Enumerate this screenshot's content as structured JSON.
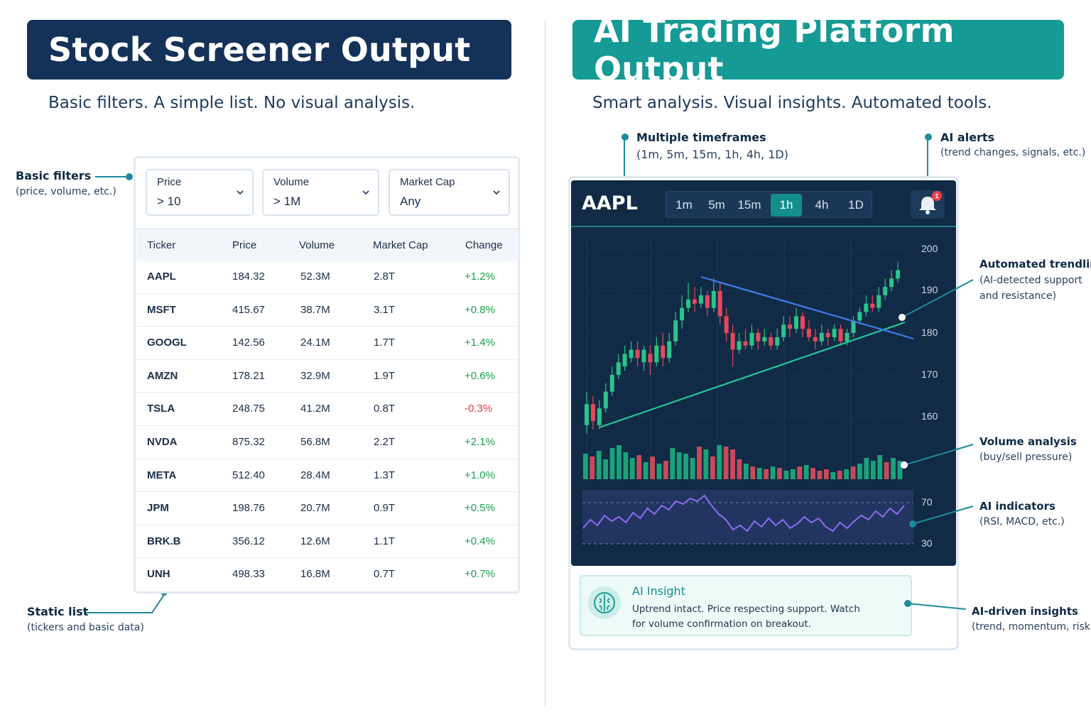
{
  "left": {
    "title": "Stock Screener Output",
    "subtitle": "Basic filters. A simple list. No visual analysis.",
    "annotations": {
      "filters_title": "Basic filters",
      "filters_sub": "(price, volume, etc.)",
      "list_title": "Static list",
      "list_sub": "(tickers and basic data)"
    },
    "filters": [
      {
        "label": "Price",
        "value": "> 10"
      },
      {
        "label": "Volume",
        "value": "> 1M"
      },
      {
        "label": "Market Cap",
        "value": "Any"
      }
    ],
    "columns": [
      "Ticker",
      "Price",
      "Volume",
      "Market Cap",
      "Change"
    ],
    "rows": [
      {
        "ticker": "AAPL",
        "price": "184.32",
        "volume": "52.3M",
        "cap": "2.8T",
        "change": "+1.2%",
        "dir": "pos"
      },
      {
        "ticker": "MSFT",
        "price": "415.67",
        "volume": "38.7M",
        "cap": "3.1T",
        "change": "+0.8%",
        "dir": "pos"
      },
      {
        "ticker": "GOOGL",
        "price": "142.56",
        "volume": "24.1M",
        "cap": "1.7T",
        "change": "+1.4%",
        "dir": "pos"
      },
      {
        "ticker": "AMZN",
        "price": "178.21",
        "volume": "32.9M",
        "cap": "1.9T",
        "change": "+0.6%",
        "dir": "pos"
      },
      {
        "ticker": "TSLA",
        "price": "248.75",
        "volume": "41.2M",
        "cap": "0.8T",
        "change": "-0.3%",
        "dir": "neg"
      },
      {
        "ticker": "NVDA",
        "price": "875.32",
        "volume": "56.8M",
        "cap": "2.2T",
        "change": "+2.1%",
        "dir": "pos"
      },
      {
        "ticker": "META",
        "price": "512.40",
        "volume": "28.4M",
        "cap": "1.3T",
        "change": "+1.0%",
        "dir": "pos"
      },
      {
        "ticker": "JPM",
        "price": "198.76",
        "volume": "20.7M",
        "cap": "0.9T",
        "change": "+0.5%",
        "dir": "pos"
      },
      {
        "ticker": "BRK.B",
        "price": "356.12",
        "volume": "12.6M",
        "cap": "1.1T",
        "change": "+0.4%",
        "dir": "pos"
      },
      {
        "ticker": "UNH",
        "price": "498.33",
        "volume": "16.8M",
        "cap": "0.7T",
        "change": "+0.7%",
        "dir": "pos"
      }
    ]
  },
  "right": {
    "title": "AI Trading Platform Output",
    "subtitle": "Smart analysis. Visual insights. Automated tools.",
    "annotations": {
      "timeframes_title": "Multiple timeframes",
      "timeframes_sub": "(1m, 5m, 15m, 1h, 4h, 1D)",
      "alerts_title": "AI alerts",
      "alerts_sub": "(trend changes, signals, etc.)",
      "trend_title": "Automated trendlines",
      "trend_sub1": "(AI-detected support",
      "trend_sub2": "and resistance)",
      "volume_title": "Volume analysis",
      "volume_sub": "(buy/sell pressure)",
      "ind_title": "AI indicators",
      "ind_sub": "(RSI, MACD, etc.)",
      "insights_title": "AI-driven insights",
      "insights_sub": "(trend, momentum, risk)"
    },
    "ticker": "AAPL",
    "timeframes": [
      "1m",
      "5m",
      "15m",
      "1h",
      "4h",
      "1D"
    ],
    "active_timeframe": "1h",
    "alert_count": "1",
    "price_axis": [
      "200",
      "190",
      "180",
      "170",
      "160"
    ],
    "rsi_axis": [
      "70",
      "30"
    ],
    "insight_title": "AI Insight",
    "insight_body": "Uptrend intact. Price respecting support. Watch for volume confirmation on breakout."
  },
  "colors": {
    "left_header": "#143258",
    "right_header": "#169a96",
    "up": "#2bc48a",
    "down": "#e5485a",
    "accent": "#1f8a9a"
  },
  "icons": [
    "chevron-down-icon",
    "bell-icon",
    "brain-icon"
  ]
}
